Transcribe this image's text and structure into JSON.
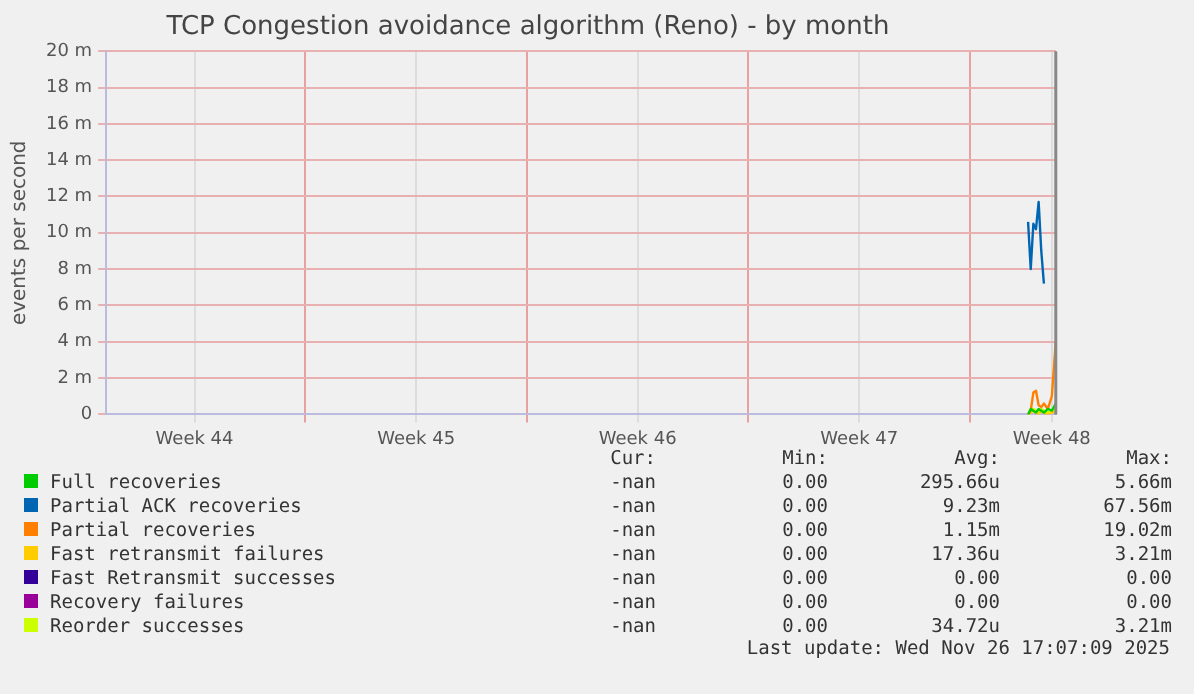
{
  "chart_data": {
    "type": "line",
    "title": "TCP Congestion avoidance algorithm (Reno) - by month",
    "ylabel": "events per second",
    "x": [
      "2025-11-25T20:00",
      "2025-11-25T22:00",
      "2025-11-26T00:00",
      "2025-11-26T02:00",
      "2025-11-26T04:00",
      "2025-11-26T06:00",
      "2025-11-26T08:00",
      "2025-11-26T11:00",
      "2025-11-26T14:00",
      "2025-11-26T17:00"
    ],
    "series": [
      {
        "name": "Full recoveries",
        "color": "#00cc00",
        "values": [
          0,
          0.3,
          0.2,
          0.1,
          0.3,
          0.2,
          0.1,
          0.3,
          0.2,
          0.6
        ]
      },
      {
        "name": "Partial ACK recoveries",
        "color": "#0066b3",
        "values": [
          10.6,
          8.0,
          10.5,
          10.2,
          11.7,
          9.0,
          7.2,
          null,
          null,
          null
        ]
      },
      {
        "name": "Partial recoveries",
        "color": "#ff8000",
        "values": [
          0,
          0.2,
          1.2,
          1.3,
          0.5,
          0.4,
          0.6,
          0.3,
          1.0,
          4.0
        ]
      },
      {
        "name": "Fast retransmit failures",
        "color": "#ffcc00",
        "values": [
          0,
          0.1,
          0.2,
          0.1,
          0,
          0.2,
          0.1,
          0,
          0.1,
          0.2
        ]
      },
      {
        "name": "Fast Retransmit successes",
        "color": "#330099",
        "values": [
          null,
          null,
          null,
          null,
          null,
          null,
          null,
          null,
          null,
          null
        ]
      },
      {
        "name": "Recovery failures",
        "color": "#990099",
        "values": [
          null,
          null,
          null,
          null,
          null,
          null,
          null,
          null,
          null,
          null
        ]
      },
      {
        "name": "Reorder successes",
        "color": "#ccff00",
        "values": [
          0,
          0.2,
          0.3,
          0.2,
          0.1,
          0.3,
          0.2,
          0.1,
          0.2,
          0.3
        ]
      }
    ],
    "xlim": [
      "2025-10-27T17:00",
      "2025-11-26T17:10"
    ],
    "xticks": [
      {
        "value": "2025-10-30T12:00",
        "label": "Week 44"
      },
      {
        "value": "2025-11-03",
        "label": null
      },
      {
        "value": "2025-11-06T12:00",
        "label": "Week 45"
      },
      {
        "value": "2025-11-10",
        "label": null
      },
      {
        "value": "2025-11-13T12:00",
        "label": "Week 46"
      },
      {
        "value": "2025-11-17",
        "label": null
      },
      {
        "value": "2025-11-20T12:00",
        "label": "Week 47"
      },
      {
        "value": "2025-11-24",
        "label": null
      },
      {
        "value": "2025-11-26T14:00",
        "label": "Week 48"
      }
    ],
    "ylim": [
      0,
      20
    ],
    "yticks": [
      0,
      {
        "value": 2,
        "label": "2 m"
      },
      {
        "value": 4,
        "label": "4 m"
      },
      {
        "value": 6,
        "label": "6 m"
      },
      {
        "value": 8,
        "label": "8 m"
      },
      {
        "value": 10,
        "label": "10 m"
      },
      {
        "value": 12,
        "label": "12 m"
      },
      {
        "value": 14,
        "label": "14 m"
      },
      {
        "value": 16,
        "label": "16 m"
      },
      {
        "value": 18,
        "label": "18 m"
      },
      {
        "value": 20,
        "label": "20 m"
      }
    ],
    "ref_lines": [
      {
        "axis": "x",
        "value": "2025-11-26T17:00",
        "color": "#888888"
      }
    ],
    "grid": true,
    "legend": "bottom",
    "marker": "none",
    "line_style": "solid",
    "annotations": [
      "Cur:",
      "Min:",
      "Avg:",
      "Max:",
      "-nan",
      "0.00",
      "295.66u",
      "5.66m",
      "-nan",
      "0.00",
      "9.23m",
      "67.56m",
      "-nan",
      "0.00",
      "1.15m",
      "19.02m",
      "-nan",
      "0.00",
      "17.36u",
      "3.21m",
      "-nan",
      "0.00",
      "0.00",
      "0.00",
      "-nan",
      "0.00",
      "0.00",
      "0.00",
      "-nan",
      "0.00",
      "34.72u",
      "3.21m",
      "Last update: Wed Nov 26 17:07:09 2025"
    ]
  }
}
